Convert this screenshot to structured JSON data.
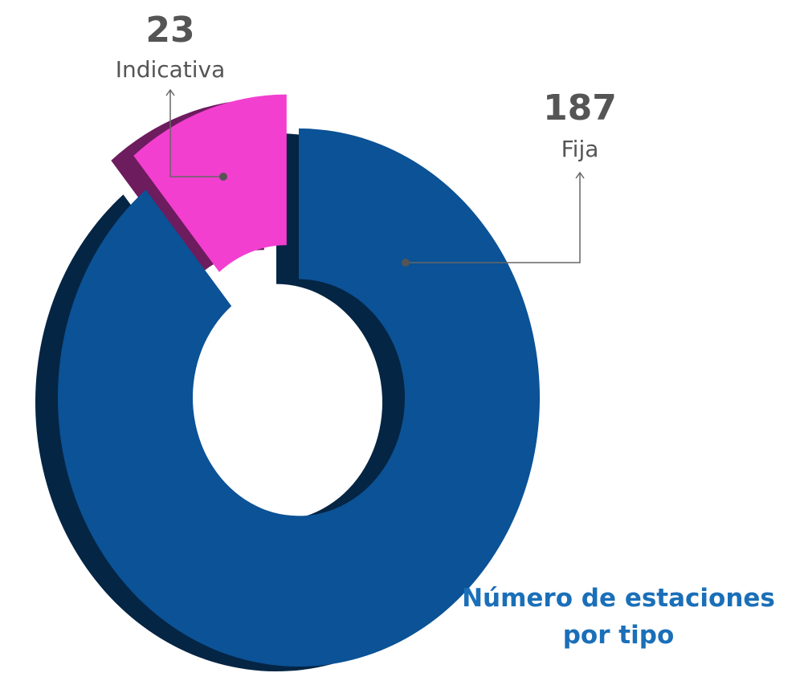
{
  "chart_data": {
    "type": "pie",
    "donut": true,
    "title": "Número de estaciones por tipo",
    "categories": [
      "Fija",
      "Indicativa"
    ],
    "values": [
      187,
      23
    ],
    "colors": [
      "#0b5296",
      "#f23fd0"
    ]
  }
}
